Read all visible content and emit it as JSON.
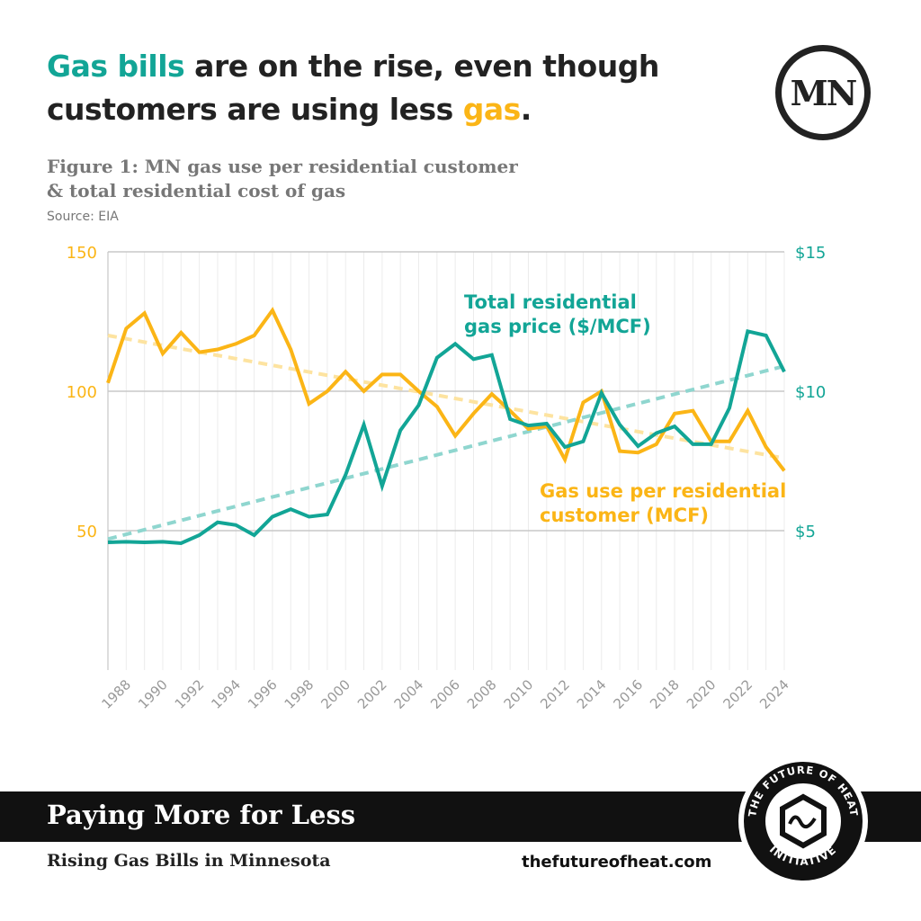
{
  "headline": {
    "part1": "Gas bills",
    "part2": " are on the rise, even though",
    "part3": "customers are using less ",
    "part4": "gas",
    "part5": "."
  },
  "logo_mn": "MN",
  "figure_title_line1": "Figure 1: MN gas use per residential customer",
  "figure_title_line2": "& total residential cost of gas",
  "source": "Source: EIA",
  "footer": {
    "band_title": "Paying More for Less",
    "subtitle": "Rising Gas Bills in Minnesota",
    "url": "thefutureofheat.com",
    "badge_text": "THE FUTURE OF HEAT INITIATIVE"
  },
  "colors": {
    "teal": "#12a596",
    "yellow": "#fbb516",
    "teal_trend": "#8fd6cf",
    "yellow_trend": "#fde3a0"
  },
  "chart_data": {
    "type": "line",
    "x": [
      1987,
      1988,
      1989,
      1990,
      1991,
      1992,
      1993,
      1994,
      1995,
      1996,
      1997,
      1998,
      1999,
      2000,
      2001,
      2002,
      2003,
      2004,
      2005,
      2006,
      2007,
      2008,
      2009,
      2010,
      2011,
      2012,
      2013,
      2014,
      2015,
      2016,
      2017,
      2018,
      2019,
      2020,
      2021,
      2022,
      2023,
      2024
    ],
    "x_tick_labels": [
      "1988",
      "1990",
      "1992",
      "1994",
      "1996",
      "1998",
      "2000",
      "2002",
      "2004",
      "2006",
      "2008",
      "2010",
      "2012",
      "2014",
      "2016",
      "2018",
      "2020",
      "2022",
      "2024"
    ],
    "left_axis": {
      "range": [
        0,
        150
      ],
      "ticks": [
        "50",
        "100",
        "150"
      ]
    },
    "right_axis": {
      "range": [
        0,
        15
      ],
      "ticks": [
        "$5",
        "$10",
        "$15"
      ]
    },
    "grid": "horizontal at labeled ticks, light vertical per year",
    "series": [
      {
        "name": "Gas use per residential customer (MCF)",
        "label_line1": "Gas use per residential",
        "label_line2": "customer (MCF)",
        "axis": "left",
        "color": "#fbb516",
        "values": [
          103,
          122.5,
          128,
          113.5,
          121,
          114,
          115,
          117,
          120,
          129,
          115,
          95.5,
          100,
          107,
          100,
          106,
          106,
          100,
          94.5,
          84,
          92,
          99,
          93,
          86.5,
          87.5,
          75.5,
          96,
          100,
          78.5,
          78,
          81,
          92,
          93,
          82,
          82,
          93,
          80,
          71.5
        ],
        "trend": [
          120,
          76
        ]
      },
      {
        "name": "Total residential gas price ($/MCF)",
        "label_line1": "Total residential",
        "label_line2": "gas price ($/MCF)",
        "axis": "right",
        "color": "#12a596",
        "values": [
          4.58,
          4.6,
          4.58,
          4.6,
          4.55,
          4.84,
          5.3,
          5.2,
          4.84,
          5.5,
          5.77,
          5.5,
          5.58,
          7.0,
          8.8,
          6.6,
          8.6,
          9.5,
          11.2,
          11.7,
          11.15,
          11.3,
          9.0,
          8.77,
          8.84,
          8.0,
          8.2,
          9.94,
          8.8,
          8.03,
          8.5,
          8.74,
          8.1,
          8.1,
          9.4,
          12.15,
          12.0,
          10.7
        ],
        "trend": [
          4.7,
          10.9
        ]
      }
    ]
  }
}
